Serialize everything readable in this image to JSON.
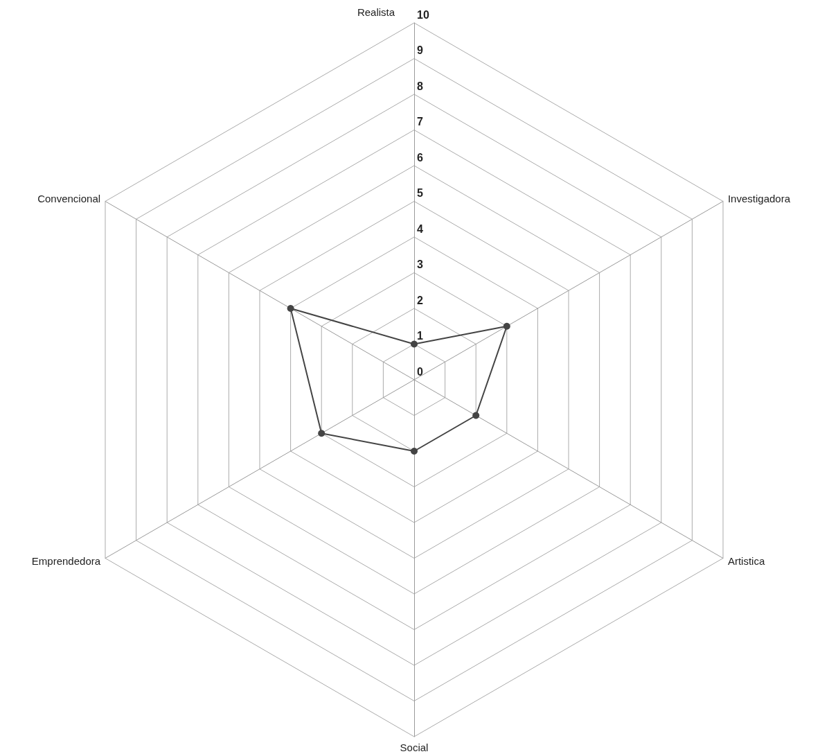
{
  "chart_data": {
    "type": "radar",
    "categories": [
      "Realista",
      "Investigadora",
      "Artistica",
      "Social",
      "Emprendedora",
      "Convencional"
    ],
    "series": [
      {
        "color": "#444444",
        "values": [
          1,
          3,
          2,
          2,
          3,
          4
        ]
      }
    ],
    "ylim": [
      0,
      10
    ],
    "yticks": [
      0,
      1,
      2,
      3,
      4,
      5,
      6,
      7,
      8,
      9,
      10
    ],
    "grid": true,
    "marker": "circle"
  }
}
